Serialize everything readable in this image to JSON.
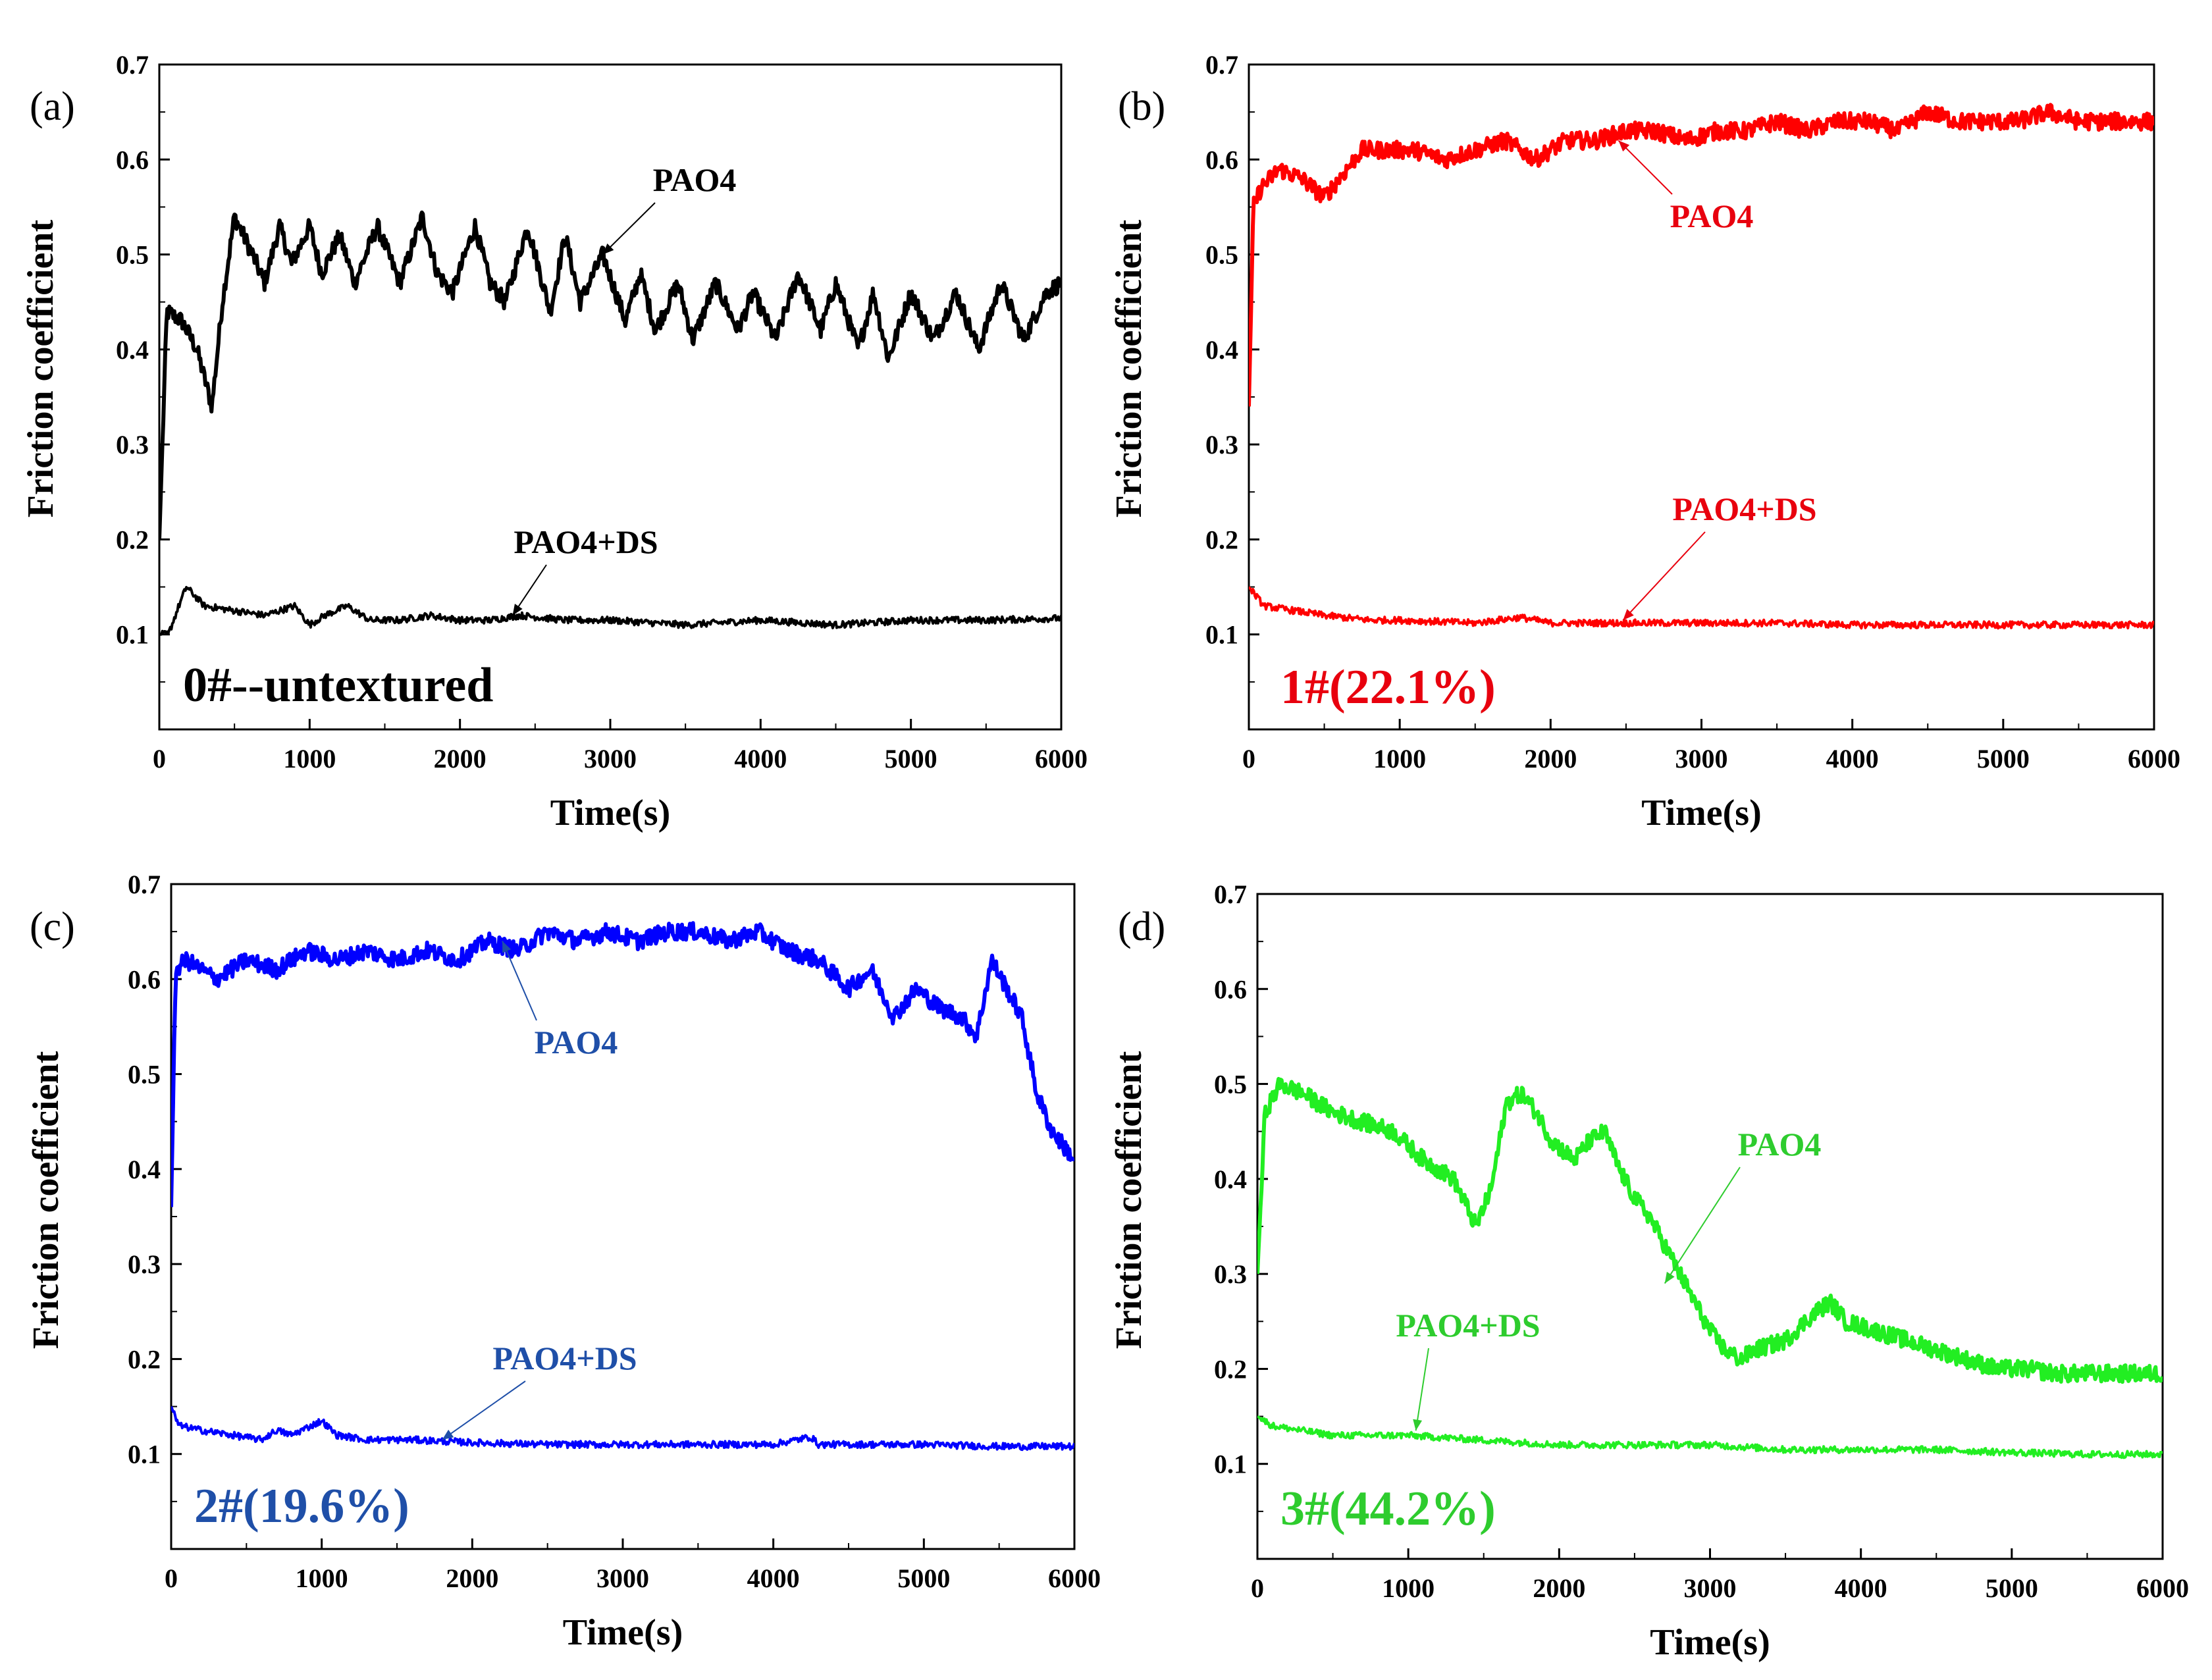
{
  "chart_data": [
    {
      "type": "line",
      "panel_label": "(a)",
      "sample_label": "0#--untextured",
      "color": "#000000",
      "label_color": "#000000",
      "xlabel": "Time(s)",
      "ylabel": "Friction coefficient",
      "xlim": [
        0,
        6000
      ],
      "ylim": [
        0,
        0.7
      ],
      "xticks": [
        "0",
        "1000",
        "2000",
        "3000",
        "4000",
        "5000",
        "6000"
      ],
      "yticks": [
        "0.1",
        "0.2",
        "0.3",
        "0.4",
        "0.5",
        "0.6",
        "0.7"
      ],
      "series": [
        {
          "name": "PAO4",
          "x": [
            0,
            50,
            150,
            250,
            350,
            420,
            500,
            620,
            700,
            800,
            880,
            1000,
            1080,
            1200,
            1300,
            1450,
            1600,
            1750,
            1850,
            1950,
            2100,
            2200,
            2300,
            2450,
            2600,
            2700,
            2800,
            2950,
            3100,
            3200,
            3300,
            3450,
            3550,
            3700,
            3850,
            3950,
            4100,
            4250,
            4400,
            4500,
            4650,
            4750,
            4850,
            5000,
            5150,
            5300,
            5450,
            5600,
            5750,
            5900,
            6000
          ],
          "y": [
            0.2,
            0.44,
            0.43,
            0.4,
            0.34,
            0.45,
            0.54,
            0.5,
            0.47,
            0.53,
            0.49,
            0.53,
            0.48,
            0.52,
            0.47,
            0.53,
            0.47,
            0.54,
            0.48,
            0.46,
            0.53,
            0.47,
            0.45,
            0.53,
            0.44,
            0.52,
            0.45,
            0.5,
            0.43,
            0.48,
            0.42,
            0.47,
            0.41,
            0.47,
            0.42,
            0.46,
            0.41,
            0.48,
            0.42,
            0.47,
            0.4,
            0.46,
            0.39,
            0.46,
            0.41,
            0.46,
            0.4,
            0.47,
            0.41,
            0.46,
            0.47
          ]
        },
        {
          "name": "PAO4+DS",
          "x": [
            0,
            60,
            130,
            180,
            300,
            500,
            700,
            900,
            1000,
            1100,
            1250,
            1400,
            1600,
            1800,
            2000,
            2200,
            2400,
            2700,
            3000,
            3500,
            4000,
            4500,
            5000,
            5500,
            6000
          ],
          "y": [
            0.1,
            0.1,
            0.13,
            0.15,
            0.13,
            0.125,
            0.12,
            0.13,
            0.11,
            0.12,
            0.13,
            0.115,
            0.115,
            0.12,
            0.115,
            0.115,
            0.12,
            0.115,
            0.115,
            0.11,
            0.115,
            0.11,
            0.115,
            0.115,
            0.117
          ]
        }
      ],
      "annotations": [
        {
          "text": "PAO4",
          "target_x": 2950,
          "target_y": 0.5
        },
        {
          "text": "PAO4+DS",
          "target_x": 2350,
          "target_y": 0.12
        }
      ]
    },
    {
      "type": "line",
      "panel_label": "(b)",
      "sample_label": "1#(22.1%)",
      "color": "#ff0000",
      "label_color": "#e8000e",
      "xlabel": "Time(s)",
      "ylabel": "Friction coefficient",
      "xlim": [
        0,
        6000
      ],
      "ylim": [
        0,
        0.7
      ],
      "xticks": [
        "0",
        "1000",
        "2000",
        "3000",
        "4000",
        "5000",
        "6000"
      ],
      "yticks": [
        "0.1",
        "0.2",
        "0.3",
        "0.4",
        "0.5",
        "0.6",
        "0.7"
      ],
      "series": [
        {
          "name": "PAO4",
          "x": [
            0,
            30,
            80,
            200,
            350,
            500,
            650,
            750,
            900,
            1100,
            1300,
            1500,
            1700,
            1900,
            2100,
            2300,
            2500,
            2700,
            2900,
            3100,
            3300,
            3500,
            3700,
            3900,
            4100,
            4300,
            4500,
            4700,
            4900,
            5100,
            5300,
            5500,
            5700,
            5900,
            6000
          ],
          "y": [
            0.34,
            0.55,
            0.57,
            0.59,
            0.58,
            0.56,
            0.59,
            0.61,
            0.61,
            0.61,
            0.6,
            0.61,
            0.62,
            0.6,
            0.62,
            0.62,
            0.63,
            0.63,
            0.62,
            0.63,
            0.63,
            0.64,
            0.63,
            0.64,
            0.64,
            0.63,
            0.65,
            0.64,
            0.64,
            0.64,
            0.65,
            0.64,
            0.64,
            0.64,
            0.64
          ]
        },
        {
          "name": "PAO4+DS",
          "x": [
            0,
            100,
            300,
            500,
            800,
            1000,
            1500,
            1800,
            2000,
            2500,
            3000,
            3500,
            4000,
            4500,
            5000,
            5500,
            6000
          ],
          "y": [
            0.15,
            0.13,
            0.125,
            0.12,
            0.115,
            0.115,
            0.112,
            0.118,
            0.112,
            0.112,
            0.112,
            0.112,
            0.11,
            0.11,
            0.11,
            0.11,
            0.11
          ]
        }
      ],
      "annotations": [
        {
          "text": "PAO4",
          "target_x": 2450,
          "target_y": 0.62
        },
        {
          "text": "PAO4+DS",
          "target_x": 2480,
          "target_y": 0.115
        }
      ]
    },
    {
      "type": "line",
      "panel_label": "(c)",
      "sample_label": "2#(19.6%)",
      "color": "#0000ff",
      "label_color": "#1f4fa8",
      "xlabel": "Time(s)",
      "ylabel": "Friction coefficient",
      "xlim": [
        0,
        6000
      ],
      "ylim": [
        0,
        0.7
      ],
      "xticks": [
        "0",
        "1000",
        "2000",
        "3000",
        "4000",
        "5000",
        "6000"
      ],
      "yticks": [
        "0.1",
        "0.2",
        "0.3",
        "0.4",
        "0.5",
        "0.6",
        "0.7"
      ],
      "series": [
        {
          "name": "PAO4",
          "x": [
            0,
            30,
            100,
            300,
            500,
            700,
            900,
            1100,
            1300,
            1500,
            1700,
            1900,
            2100,
            2300,
            2500,
            2700,
            2900,
            3100,
            3300,
            3500,
            3700,
            3900,
            4100,
            4300,
            4500,
            4650,
            4800,
            4950,
            5100,
            5250,
            5350,
            5450,
            5550,
            5650,
            5750,
            5850,
            5950,
            6000
          ],
          "y": [
            0.36,
            0.61,
            0.62,
            0.6,
            0.62,
            0.61,
            0.63,
            0.62,
            0.63,
            0.62,
            0.63,
            0.62,
            0.64,
            0.63,
            0.65,
            0.64,
            0.65,
            0.64,
            0.65,
            0.65,
            0.64,
            0.65,
            0.63,
            0.62,
            0.59,
            0.61,
            0.56,
            0.59,
            0.57,
            0.56,
            0.54,
            0.62,
            0.59,
            0.56,
            0.48,
            0.44,
            0.42,
            0.41
          ]
        },
        {
          "name": "PAO4+DS",
          "x": [
            0,
            50,
            200,
            400,
            600,
            700,
            800,
            1000,
            1100,
            1300,
            1600,
            2000,
            2500,
            3000,
            3500,
            4000,
            4250,
            4300,
            4500,
            5000,
            5500,
            6000
          ],
          "y": [
            0.15,
            0.13,
            0.125,
            0.12,
            0.115,
            0.125,
            0.12,
            0.135,
            0.12,
            0.115,
            0.115,
            0.112,
            0.11,
            0.11,
            0.11,
            0.11,
            0.118,
            0.11,
            0.11,
            0.11,
            0.108,
            0.108
          ]
        }
      ],
      "annotations": [
        {
          "text": "PAO4",
          "target_x": 2200,
          "target_y": 0.64
        },
        {
          "text": "PAO4+DS",
          "target_x": 1800,
          "target_y": 0.115
        }
      ]
    },
    {
      "type": "line",
      "panel_label": "(d)",
      "sample_label": "3#(44.2%)",
      "color": "#22ee22",
      "label_color": "#2ecc2e",
      "xlabel": "Time(s)",
      "ylabel": "Friction coefficient",
      "xlim": [
        0,
        6000
      ],
      "ylim": [
        0,
        0.7
      ],
      "xticks": [
        "0",
        "1000",
        "2000",
        "3000",
        "4000",
        "5000",
        "6000"
      ],
      "yticks": [
        "0.1",
        "0.2",
        "0.3",
        "0.4",
        "0.5",
        "0.6",
        "0.7"
      ],
      "series": [
        {
          "name": "PAO4",
          "x": [
            0,
            50,
            150,
            300,
            500,
            700,
            900,
            1100,
            1300,
            1450,
            1550,
            1650,
            1750,
            1850,
            1950,
            2100,
            2200,
            2300,
            2400,
            2500,
            2600,
            2700,
            2800,
            2900,
            3000,
            3100,
            3200,
            3300,
            3500,
            3700,
            3800,
            3900,
            4100,
            4300,
            4500,
            4700,
            4900,
            5100,
            5300,
            5500,
            5700,
            5900,
            6000
          ],
          "y": [
            0.3,
            0.47,
            0.5,
            0.49,
            0.47,
            0.46,
            0.45,
            0.42,
            0.4,
            0.35,
            0.39,
            0.48,
            0.49,
            0.47,
            0.44,
            0.42,
            0.44,
            0.45,
            0.41,
            0.38,
            0.36,
            0.33,
            0.3,
            0.27,
            0.24,
            0.22,
            0.21,
            0.22,
            0.23,
            0.26,
            0.27,
            0.25,
            0.24,
            0.23,
            0.22,
            0.21,
            0.2,
            0.2,
            0.195,
            0.195,
            0.195,
            0.195,
            0.195
          ]
        },
        {
          "name": "PAO4+DS",
          "x": [
            0,
            100,
            500,
            1000,
            1500,
            2000,
            2500,
            3000,
            3500,
            4000,
            4500,
            5000,
            5500,
            6000
          ],
          "y": [
            0.15,
            0.14,
            0.13,
            0.13,
            0.125,
            0.12,
            0.12,
            0.12,
            0.115,
            0.115,
            0.115,
            0.112,
            0.11,
            0.11
          ]
        }
      ],
      "annotations": [
        {
          "text": "PAO4",
          "target_x": 2700,
          "target_y": 0.29
        },
        {
          "text": "PAO4+DS",
          "target_x": 1050,
          "target_y": 0.135
        }
      ]
    }
  ]
}
